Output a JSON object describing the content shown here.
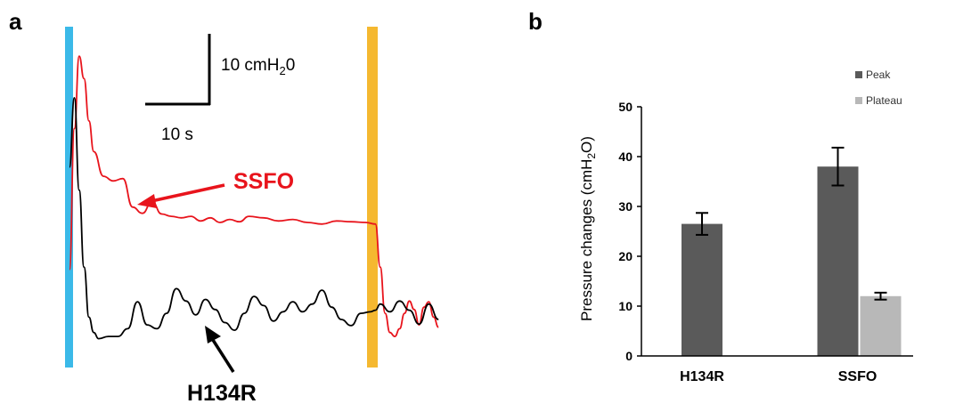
{
  "colors": {
    "light_onset": "#3bb9e8",
    "light_offset": "#f5b830",
    "ssfo_trace": "#e8141c",
    "h134r_trace": "#000000",
    "peak_bar": "#5a5a5a",
    "plateau_bar": "#b8b8b8"
  },
  "panel_a": {
    "label": "a",
    "scale_y": {
      "value": "10 cmH",
      "sub": "2",
      "suffix": "0"
    },
    "scale_x": "10 s",
    "ssfo_label": "SSFO",
    "h134r_label": "H134R"
  },
  "panel_b": {
    "label": "b",
    "ylabel": {
      "main": "Pressure changes (cmH",
      "sub": "2",
      "end": "O)"
    }
  },
  "chart_data": [
    {
      "type": "line",
      "panel": "a",
      "title": "",
      "xlabel": "",
      "ylabel": "",
      "scale_bar": {
        "x": "10 s",
        "y": "10 cmH20"
      },
      "series": [
        {
          "name": "SSFO",
          "color": "#e8141c",
          "x": [
            0,
            1,
            2,
            3,
            4,
            5,
            7,
            9,
            11,
            13,
            15,
            17,
            19,
            21,
            23,
            25,
            27,
            29,
            31,
            33,
            35,
            37,
            40,
            43,
            46,
            49,
            52,
            55,
            58,
            61,
            63,
            64,
            65,
            66,
            67,
            68,
            69,
            70,
            71,
            72,
            73,
            74,
            75,
            76
          ],
          "y": [
            11.7,
            30,
            39.4,
            36.5,
            31,
            27,
            23.8,
            23.2,
            23.5,
            19.8,
            19,
            20.5,
            18.9,
            18.6,
            18.4,
            18.6,
            18,
            18.4,
            17.8,
            18.2,
            17.9,
            18.6,
            18.4,
            18,
            18.2,
            17.8,
            17.6,
            18,
            17.9,
            17.8,
            17.6,
            12,
            6,
            3.5,
            3,
            4,
            6,
            7.6,
            6.5,
            4.5,
            6.8,
            7.5,
            5.5,
            4.2
          ]
        },
        {
          "name": "H134R",
          "color": "#000000",
          "x": [
            0,
            1,
            2,
            3,
            4,
            5,
            6,
            8,
            10,
            12,
            14,
            16,
            18,
            20,
            22,
            24,
            26,
            28,
            30,
            32,
            34,
            36,
            38,
            40,
            42,
            44,
            46,
            48,
            50,
            52,
            54,
            56,
            58,
            60,
            62,
            63,
            64,
            66,
            68,
            70,
            72,
            74,
            76
          ],
          "y": [
            25,
            34,
            22,
            12,
            5.5,
            3.5,
            2.7,
            3,
            3,
            4,
            7.5,
            4.5,
            4,
            6,
            9.2,
            7.6,
            5.8,
            7.8,
            6.5,
            4.8,
            3.8,
            6,
            8.2,
            7,
            5,
            6.2,
            7.5,
            6.2,
            7.2,
            9,
            6.8,
            5.2,
            4.4,
            6,
            6.2,
            6.4,
            7.2,
            6.2,
            7.6,
            6.4,
            4.6,
            7.2,
            5.2
          ]
        }
      ]
    },
    {
      "type": "bar",
      "panel": "b",
      "title": "",
      "xlabel": "",
      "ylabel": "Pressure changes (cmH2O)",
      "categories": [
        "H134R",
        "SSFO"
      ],
      "ylim": [
        0,
        50
      ],
      "yticks": [
        0,
        10,
        20,
        30,
        40,
        50
      ],
      "legend_position": "top-right",
      "series": [
        {
          "name": "Peak",
          "color": "#5a5a5a",
          "values": [
            26.5,
            38
          ],
          "errors": [
            2.2,
            3.8
          ]
        },
        {
          "name": "Plateau",
          "color": "#b8b8b8",
          "values": [
            null,
            12
          ],
          "errors": [
            null,
            0.7
          ]
        }
      ]
    }
  ]
}
